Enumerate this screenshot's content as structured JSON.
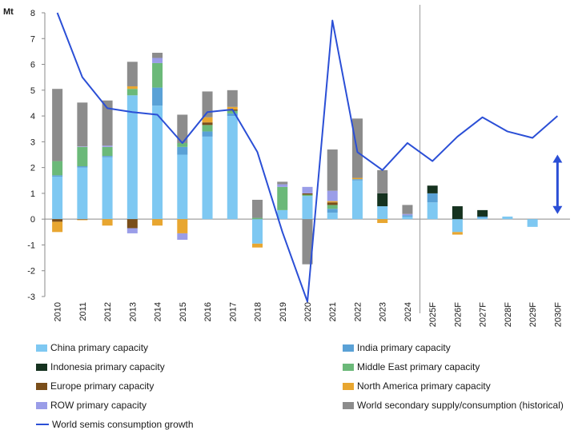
{
  "chart_data": {
    "type": "bar",
    "stacked": true,
    "unit_label": "Mt",
    "categories": [
      "2010",
      "2011",
      "2012",
      "2013",
      "2014",
      "2015",
      "2016",
      "2017",
      "2018",
      "2019",
      "2020",
      "2021",
      "2022",
      "2023",
      "2024",
      "2025F",
      "2026F",
      "2027F",
      "2028F",
      "2029F",
      "2030F"
    ],
    "ylim": [
      -3,
      8
    ],
    "yticks": [
      -3,
      -2,
      -1,
      0,
      1,
      2,
      3,
      4,
      5,
      6,
      7,
      8
    ],
    "forecast_start": "2025F",
    "series": [
      {
        "name": "China primary capacity",
        "color": "#7ec8f2",
        "values": [
          1.65,
          2.0,
          2.4,
          4.8,
          4.4,
          2.5,
          3.2,
          4.0,
          -0.95,
          0.35,
          0.9,
          0.25,
          1.5,
          0.5,
          0.1,
          0.65,
          -0.5,
          0.05,
          0.1,
          -0.3,
          0
        ]
      },
      {
        "name": "India primary capacity",
        "color": "#5aa1d6",
        "values": [
          0.05,
          0.05,
          0.05,
          0,
          0.7,
          0.3,
          0.2,
          0.1,
          0,
          0,
          0,
          0.15,
          0.05,
          0,
          0.05,
          0.35,
          0,
          0.05,
          0,
          0,
          0
        ]
      },
      {
        "name": "Indonesia primary capacity",
        "color": "#15321f",
        "values": [
          0,
          0,
          0,
          0,
          0,
          0,
          0,
          0,
          0,
          0,
          0,
          0,
          0,
          0.5,
          0,
          0.3,
          0.5,
          0.25,
          0,
          0,
          0
        ]
      },
      {
        "name": "Middle East primary capacity",
        "color": "#6bb979",
        "values": [
          0.55,
          0.75,
          0.35,
          0.25,
          0.95,
          0.15,
          0.25,
          0.1,
          0.05,
          0.9,
          0.05,
          0.15,
          0,
          0,
          0,
          0,
          0,
          0,
          0,
          0,
          0
        ]
      },
      {
        "name": "Europe primary capacity",
        "color": "#7a4e1a",
        "values": [
          -0.1,
          -0.02,
          0,
          -0.35,
          0,
          0,
          0.1,
          0.05,
          0,
          0,
          0.05,
          0.1,
          0,
          0,
          0,
          0,
          0,
          0,
          0,
          0,
          0
        ]
      },
      {
        "name": "North America primary capacity",
        "color": "#e8a630",
        "values": [
          -0.4,
          -0.02,
          -0.25,
          0.1,
          -0.25,
          -0.55,
          0.2,
          0.1,
          -0.15,
          0,
          0,
          0.05,
          0.05,
          -0.15,
          0,
          0,
          -0.1,
          0,
          0,
          0,
          0
        ]
      },
      {
        "name": "ROW primary capacity",
        "color": "#9a9de8",
        "values": [
          0,
          0.02,
          0.05,
          -0.2,
          0.2,
          -0.25,
          0,
          0,
          0,
          0.1,
          0.25,
          0.4,
          0,
          0,
          0.05,
          0,
          0,
          0,
          0,
          0,
          0
        ]
      },
      {
        "name": "World secondary supply/consumption (historical)",
        "color": "#8c8c8c",
        "values": [
          2.8,
          1.7,
          1.75,
          0.95,
          0.2,
          1.1,
          1.0,
          0.65,
          0.7,
          0.1,
          -1.75,
          1.6,
          2.3,
          0.9,
          0.35,
          0,
          0,
          0,
          0,
          0,
          0
        ]
      }
    ],
    "line": {
      "name": "World semis consumption growth",
      "color": "#2b4fd6",
      "values": [
        8.0,
        5.5,
        4.3,
        4.15,
        4.05,
        2.95,
        4.15,
        4.25,
        2.6,
        -0.5,
        -3.2,
        7.7,
        2.6,
        1.9,
        2.95,
        2.25,
        3.2,
        3.95,
        3.4,
        3.15,
        4.0
      ]
    },
    "annotation": {
      "type": "double-arrow",
      "category": "2030F",
      "from": 0.2,
      "to": 2.5,
      "color": "#2b4fd6"
    },
    "legend_position": "bottom"
  }
}
